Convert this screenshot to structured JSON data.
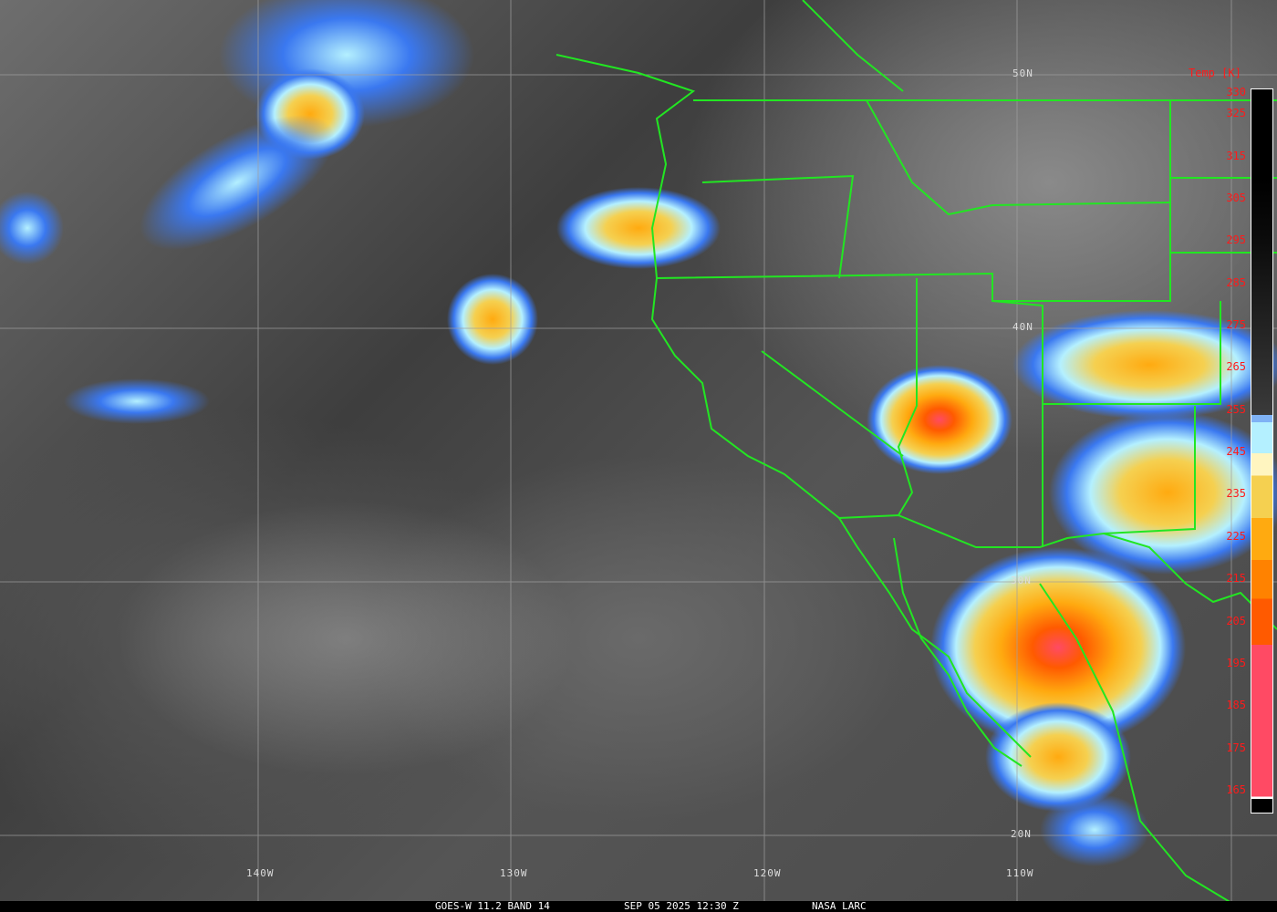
{
  "caption": {
    "satellite": "GOES-W 11.2 BAND 14",
    "datetime": "SEP 05 2025 12:30 Z",
    "credit": "NASA LARC"
  },
  "latitude_labels": [
    "50N",
    "40N",
    "30N",
    "20N"
  ],
  "longitude_labels": [
    "140W",
    "130W",
    "120W",
    "110W"
  ],
  "colorbar": {
    "title": "Temp [K]",
    "ticks": [
      "330",
      "325",
      "315",
      "305",
      "295",
      "285",
      "275",
      "265",
      "255",
      "245",
      "235",
      "225",
      "215",
      "205",
      "195",
      "185",
      "175",
      "165"
    ]
  },
  "colors": {
    "borders": "#22e622",
    "grid": "#a0a0a0",
    "tick_text": "#ff1a1a"
  }
}
